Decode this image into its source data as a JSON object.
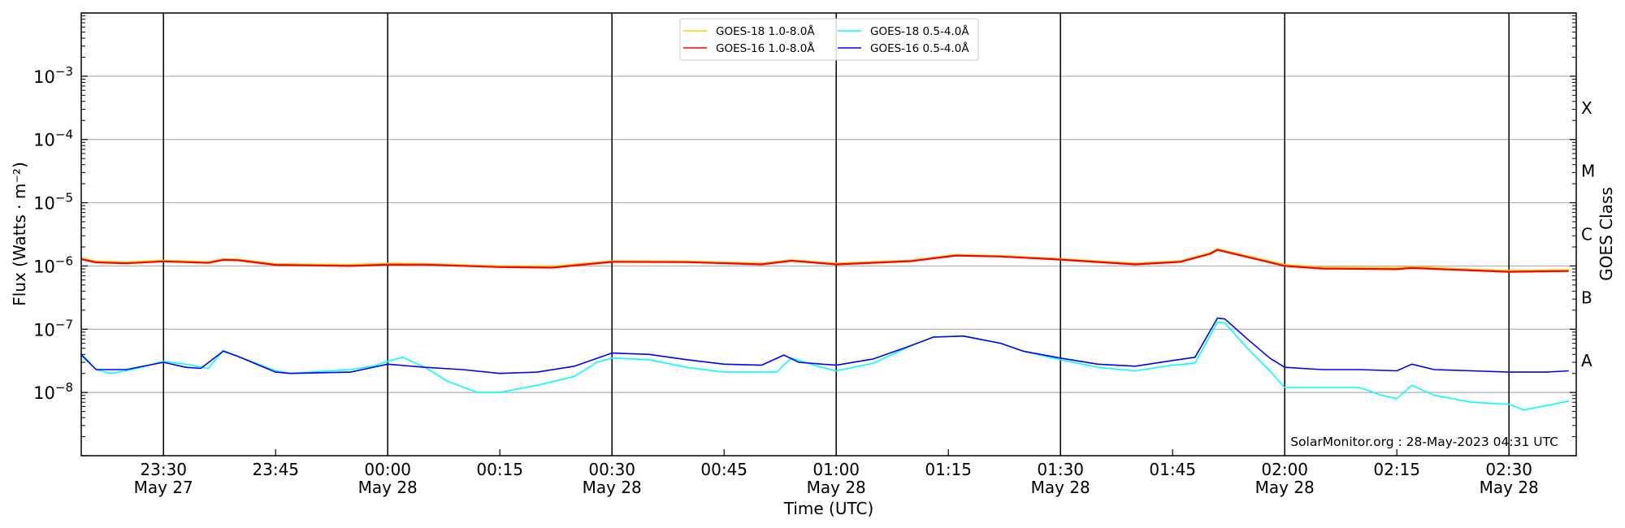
{
  "chart_data": {
    "type": "line",
    "title": "",
    "xlabel": "Time (UTC)",
    "ylabel": "Flux (Watts · m⁻²)",
    "y2label": "GOES Class",
    "yscale": "log",
    "ylim": [
      1e-09,
      0.01
    ],
    "xlim": [
      "23:19",
      "02:39"
    ],
    "grid": {
      "horizontal": true,
      "vertical_at_major_ticks": true
    },
    "yticks": [
      {
        "value": 0.001,
        "base": "10",
        "exp": "−3"
      },
      {
        "value": 0.0001,
        "base": "10",
        "exp": "−4"
      },
      {
        "value": 1e-05,
        "base": "10",
        "exp": "−5"
      },
      {
        "value": 1e-06,
        "base": "10",
        "exp": "−6"
      },
      {
        "value": 1e-07,
        "base": "10",
        "exp": "−7"
      },
      {
        "value": 1e-08,
        "base": "10",
        "exp": "−8"
      }
    ],
    "xticks": [
      {
        "time": "23:30",
        "label": "23:30",
        "date": "May 27",
        "major": true
      },
      {
        "time": "23:45",
        "label": "23:45",
        "date": "",
        "major": false
      },
      {
        "time": "00:00",
        "label": "00:00",
        "date": "May 28",
        "major": true
      },
      {
        "time": "00:15",
        "label": "00:15",
        "date": "",
        "major": false
      },
      {
        "time": "00:30",
        "label": "00:30",
        "date": "May 28",
        "major": true
      },
      {
        "time": "00:45",
        "label": "00:45",
        "date": "",
        "major": false
      },
      {
        "time": "01:00",
        "label": "01:00",
        "date": "May 28",
        "major": true
      },
      {
        "time": "01:15",
        "label": "01:15",
        "date": "",
        "major": false
      },
      {
        "time": "01:30",
        "label": "01:30",
        "date": "May 28",
        "major": true
      },
      {
        "time": "01:45",
        "label": "01:45",
        "date": "",
        "major": false
      },
      {
        "time": "02:00",
        "label": "02:00",
        "date": "May 28",
        "major": true
      },
      {
        "time": "02:15",
        "label": "02:15",
        "date": "",
        "major": false
      },
      {
        "time": "02:30",
        "label": "02:30",
        "date": "May 28",
        "major": true
      }
    ],
    "goes_classes": [
      {
        "label": "X",
        "value": 0.000316
      },
      {
        "label": "M",
        "value": 3.16e-05
      },
      {
        "label": "C",
        "value": 3.16e-06
      },
      {
        "label": "B",
        "value": 3.16e-07
      },
      {
        "label": "A",
        "value": 3.16e-08
      }
    ],
    "legend": {
      "placement": "top-center",
      "columns": 2
    },
    "series": [
      {
        "name": "GOES-18 1.0-8.0Å",
        "color": "#ffcc00",
        "x": [
          "23:19",
          "23:21",
          "23:25",
          "23:30",
          "23:36",
          "23:38",
          "23:40",
          "23:45",
          "23:55",
          "00:00",
          "00:05",
          "00:15",
          "00:22",
          "00:30",
          "00:40",
          "00:50",
          "00:54",
          "01:00",
          "01:10",
          "01:16",
          "01:22",
          "01:30",
          "01:40",
          "01:46",
          "01:50",
          "01:51",
          "01:56",
          "02:00",
          "02:05",
          "02:15",
          "02:17",
          "02:25",
          "02:30",
          "02:38"
        ],
        "y": [
          1.32e-06,
          1.18e-06,
          1.14e-06,
          1.22e-06,
          1.15e-06,
          1.28e-06,
          1.26e-06,
          1.07e-06,
          1.04e-06,
          1.09e-06,
          1.08e-06,
          9.9e-07,
          9.8e-07,
          1.19e-06,
          1.18e-06,
          1.09e-06,
          1.24e-06,
          1.09e-06,
          1.22e-06,
          1.49e-06,
          1.44e-06,
          1.29e-06,
          1.09e-06,
          1.19e-06,
          1.6e-06,
          1.85e-06,
          1.34e-06,
          1.04e-06,
          9.5e-07,
          9.3e-07,
          9.7e-07,
          8.8e-07,
          8.4e-07,
          8.6e-07
        ]
      },
      {
        "name": "GOES-16 1.0-8.0Å",
        "color": "#ff0000",
        "x": [
          "23:19",
          "23:21",
          "23:25",
          "23:30",
          "23:36",
          "23:38",
          "23:40",
          "23:45",
          "23:55",
          "00:00",
          "00:05",
          "00:15",
          "00:22",
          "00:30",
          "00:40",
          "00:50",
          "00:54",
          "01:00",
          "01:10",
          "01:16",
          "01:22",
          "01:30",
          "01:40",
          "01:46",
          "01:50",
          "01:51",
          "01:56",
          "02:00",
          "02:05",
          "02:15",
          "02:17",
          "02:25",
          "02:30",
          "02:38"
        ],
        "y": [
          1.28e-06,
          1.14e-06,
          1.1e-06,
          1.18e-06,
          1.12e-06,
          1.25e-06,
          1.23e-06,
          1.04e-06,
          1e-06,
          1.05e-06,
          1.05e-06,
          9.6e-07,
          9.4e-07,
          1.16e-06,
          1.15e-06,
          1.06e-06,
          1.21e-06,
          1.06e-06,
          1.19e-06,
          1.46e-06,
          1.41e-06,
          1.26e-06,
          1.06e-06,
          1.16e-06,
          1.55e-06,
          1.8e-06,
          1.3e-06,
          1e-06,
          9.1e-07,
          8.9e-07,
          9.3e-07,
          8.5e-07,
          8.1e-07,
          8.3e-07
        ]
      },
      {
        "name": "GOES-18 0.5-4.0Å",
        "color": "#00ffff",
        "x": [
          "23:19",
          "23:21",
          "23:23",
          "23:25",
          "23:27",
          "23:30",
          "23:33",
          "23:36",
          "23:38",
          "23:40",
          "23:45",
          "23:47",
          "23:55",
          "23:58",
          "00:00",
          "00:02",
          "00:05",
          "00:08",
          "00:12",
          "00:15",
          "00:20",
          "00:25",
          "00:28",
          "00:30",
          "00:35",
          "00:40",
          "00:45",
          "00:50",
          "00:52",
          "00:54",
          "00:58",
          "01:00",
          "01:05",
          "01:10",
          "01:13",
          "01:17",
          "01:22",
          "01:25",
          "01:30",
          "01:35",
          "01:40",
          "01:45",
          "01:48",
          "01:51",
          "01:52",
          "01:55",
          "01:58",
          "02:00",
          "02:05",
          "02:10",
          "02:13",
          "02:15",
          "02:17",
          "02:20",
          "02:25",
          "02:30",
          "02:32",
          "02:35",
          "02:38"
        ],
        "y": [
          3.8e-08,
          2.3e-08,
          2e-08,
          2.2e-08,
          2.5e-08,
          3.1e-08,
          2.8e-08,
          2.4e-08,
          4.6e-08,
          3.7e-08,
          2.2e-08,
          2e-08,
          2.3e-08,
          2.6e-08,
          3.1e-08,
          3.6e-08,
          2.5e-08,
          1.5e-08,
          1e-08,
          1e-08,
          1.3e-08,
          1.8e-08,
          3e-08,
          3.5e-08,
          3.3e-08,
          2.5e-08,
          2.1e-08,
          2.1e-08,
          2.1e-08,
          3.5e-08,
          2.5e-08,
          2.2e-08,
          2.9e-08,
          5.5e-08,
          7.5e-08,
          7.8e-08,
          6e-08,
          4.5e-08,
          3.3e-08,
          2.5e-08,
          2.2e-08,
          2.7e-08,
          2.9e-08,
          1.3e-07,
          1.25e-07,
          5e-08,
          2.2e-08,
          1.2e-08,
          1.2e-08,
          1.2e-08,
          9e-09,
          8e-09,
          1.3e-08,
          9e-09,
          7e-09,
          6.5e-09,
          5.3e-09,
          6.2e-09,
          7.3e-09
        ]
      },
      {
        "name": "GOES-16 0.5-4.0Å",
        "color": "#0000ff",
        "x": [
          "23:19",
          "23:21",
          "23:25",
          "23:30",
          "23:33",
          "23:35",
          "23:38",
          "23:40",
          "23:45",
          "23:47",
          "23:55",
          "00:00",
          "00:05",
          "00:10",
          "00:15",
          "00:20",
          "00:25",
          "00:30",
          "00:35",
          "00:40",
          "00:45",
          "00:50",
          "00:53",
          "00:55",
          "01:00",
          "01:05",
          "01:10",
          "01:13",
          "01:17",
          "01:22",
          "01:25",
          "01:30",
          "01:35",
          "01:40",
          "01:45",
          "01:48",
          "01:51",
          "01:52",
          "01:55",
          "01:58",
          "02:00",
          "02:05",
          "02:10",
          "02:15",
          "02:17",
          "02:20",
          "02:25",
          "02:30",
          "02:35",
          "02:38"
        ],
        "y": [
          4e-08,
          2.3e-08,
          2.3e-08,
          3e-08,
          2.5e-08,
          2.4e-08,
          4.5e-08,
          3.7e-08,
          2.1e-08,
          2e-08,
          2.1e-08,
          2.8e-08,
          2.5e-08,
          2.3e-08,
          2e-08,
          2.1e-08,
          2.6e-08,
          4.2e-08,
          4e-08,
          3.3e-08,
          2.8e-08,
          2.7e-08,
          3.9e-08,
          3e-08,
          2.7e-08,
          3.4e-08,
          5.5e-08,
          7.5e-08,
          7.8e-08,
          6e-08,
          4.5e-08,
          3.5e-08,
          2.8e-08,
          2.6e-08,
          3.2e-08,
          3.6e-08,
          1.5e-07,
          1.45e-07,
          7e-08,
          3.5e-08,
          2.5e-08,
          2.3e-08,
          2.3e-08,
          2.2e-08,
          2.8e-08,
          2.3e-08,
          2.2e-08,
          2.1e-08,
          2.1e-08,
          2.2e-08
        ]
      }
    ],
    "annotation": "SolarMonitor.org : 28-May-2023 04:31 UTC"
  }
}
